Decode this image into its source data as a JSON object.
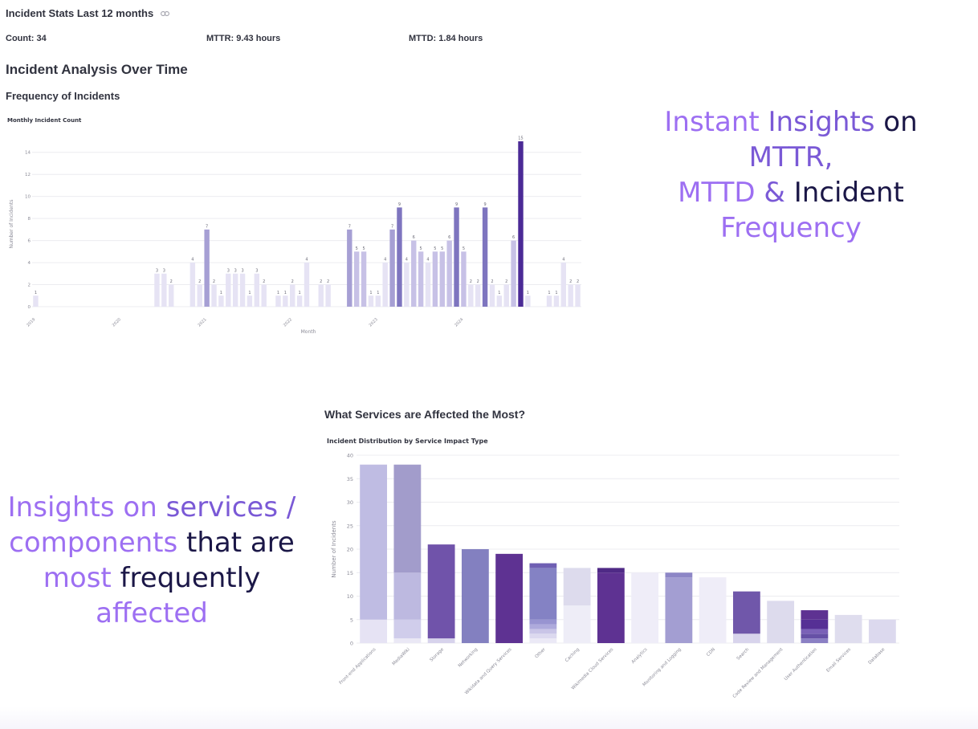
{
  "header": {
    "title": "Incident Stats Last 12 months",
    "count": "Count: 34",
    "mttr": "MTTR: 9.43 hours",
    "mttd": "MTTD: 1.84 hours"
  },
  "sections": {
    "analysis_heading": "Incident Analysis Over Time",
    "frequency_heading": "Frequency of Incidents",
    "services_heading": "What Services are Affected the Most?"
  },
  "promo": {
    "top": [
      [
        {
          "t": "Instant ",
          "c": "light"
        },
        {
          "t": "Insights ",
          "c": "mid"
        },
        {
          "t": "on",
          "c": "dark"
        }
      ],
      [
        {
          "t": "MTTR,",
          "c": "mid"
        }
      ],
      [
        {
          "t": "MTTD ",
          "c": "light"
        },
        {
          "t": "& ",
          "c": "mid"
        },
        {
          "t": "Incident",
          "c": "dark"
        }
      ],
      [
        {
          "t": "Frequency",
          "c": "light"
        }
      ]
    ],
    "bottom": [
      [
        {
          "t": "Insights ",
          "c": "light"
        },
        {
          "t": "on ",
          "c": "light"
        },
        {
          "t": "services /",
          "c": "mid"
        }
      ],
      [
        {
          "t": "components ",
          "c": "light"
        },
        {
          "t": "that are",
          "c": "dark"
        }
      ],
      [
        {
          "t": "most ",
          "c": "light"
        },
        {
          "t": "frequently",
          "c": "dark"
        }
      ],
      [
        {
          "t": "affected",
          "c": "light"
        }
      ]
    ]
  },
  "colors": {
    "light": "#9d6ff2",
    "mid": "#7a59d6",
    "dark": "#1b1747"
  },
  "chart_data": [
    {
      "type": "bar",
      "title": "Monthly Incident Count",
      "xlabel": "Month",
      "ylabel": "Number of Incidents",
      "ylim": [
        0,
        15
      ],
      "yticks": [
        0,
        2,
        4,
        6,
        8,
        10,
        12,
        14
      ],
      "x_tick_labels": [
        "2019",
        "2020",
        "2021",
        "2022",
        "2023",
        "2024"
      ],
      "grid": true,
      "legend": "none",
      "values": [
        1,
        0,
        0,
        0,
        0,
        0,
        0,
        0,
        0,
        0,
        0,
        0,
        0,
        0,
        0,
        0,
        0,
        3,
        3,
        2,
        0,
        0,
        4,
        2,
        7,
        2,
        1,
        3,
        3,
        3,
        1,
        3,
        2,
        0,
        1,
        1,
        2,
        1,
        4,
        0,
        2,
        2,
        0,
        0,
        7,
        5,
        5,
        1,
        1,
        4,
        7,
        9,
        4,
        6,
        5,
        4,
        5,
        5,
        6,
        9,
        5,
        2,
        2,
        9,
        2,
        1,
        2,
        6,
        15,
        1,
        0,
        0,
        1,
        1,
        4,
        2,
        2
      ]
    },
    {
      "type": "bar",
      "stacked": true,
      "title": "Incident Distribution by Service Impact Type",
      "ylabel": "Number of Incidents",
      "ylim": [
        0,
        40
      ],
      "yticks": [
        0,
        5,
        10,
        15,
        20,
        25,
        30,
        35,
        40
      ],
      "grid": true,
      "legend": "none",
      "categories": [
        "Front-end Applications",
        "MediaWiki",
        "Storage",
        "Networking",
        "Wikidata and Query Services",
        "Other",
        "Caching",
        "Wikimedia Cloud Services",
        "Analytics",
        "Monitoring and Logging",
        "CDN",
        "Search",
        "Code Review and Management",
        "User Authentication",
        "Email Services",
        "Database"
      ],
      "stacks": [
        [
          5,
          33
        ],
        [
          1,
          4,
          10,
          23
        ],
        [
          1,
          20
        ],
        [
          20
        ],
        [
          19
        ],
        [
          1,
          1,
          1,
          1,
          1,
          11,
          1
        ],
        [
          8,
          8
        ],
        [
          15,
          1
        ],
        [
          15
        ],
        [
          14,
          1
        ],
        [
          14
        ],
        [
          2,
          9
        ],
        [
          9
        ],
        [
          1,
          1,
          1,
          2,
          2
        ],
        [
          6
        ],
        [
          5
        ]
      ]
    }
  ]
}
